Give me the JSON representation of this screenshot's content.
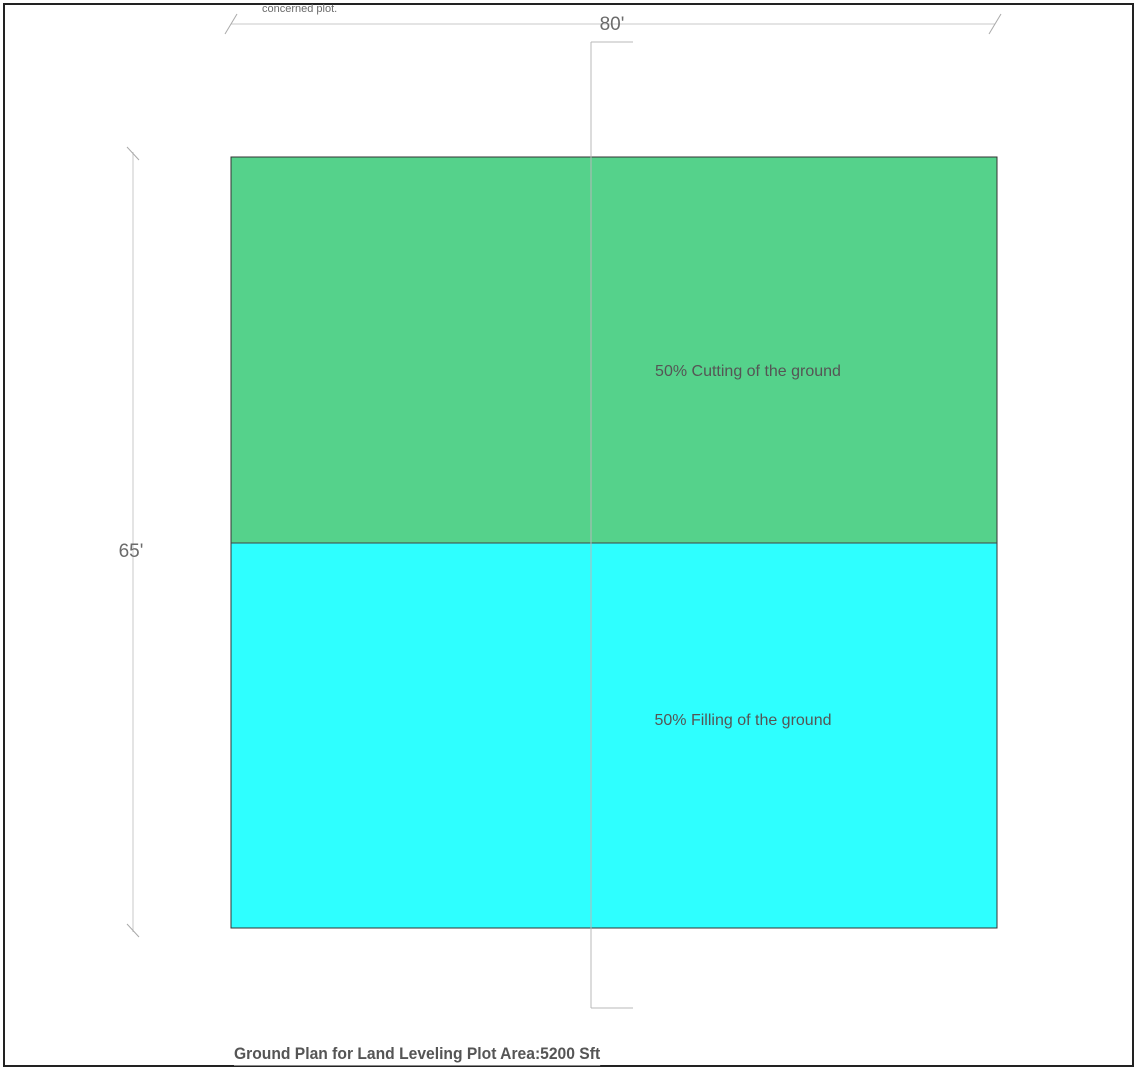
{
  "note": "concerned plot.",
  "dimensions": {
    "width_label": "80'",
    "height_label": "65'"
  },
  "zones": {
    "cutting": {
      "label": "50% Cutting of the ground",
      "color": "#55d28b"
    },
    "filling": {
      "label": "50% Filling of the ground",
      "color": "#2effff"
    }
  },
  "title": "Ground Plan for Land Leveling Plot Area:5200 Sft"
}
